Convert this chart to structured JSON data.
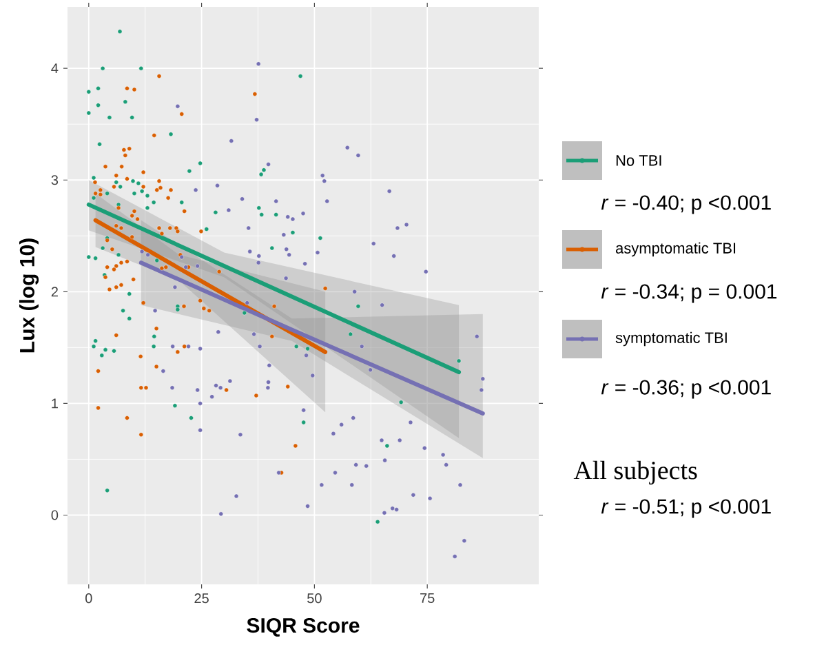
{
  "chart_data": {
    "type": "scatter",
    "xlabel": "SIQR Score",
    "ylabel": "Lux (log 10)",
    "xlim": [
      -4.7,
      99.7
    ],
    "ylim": [
      -0.62,
      4.55
    ],
    "xticks": [
      0,
      25,
      50,
      75
    ],
    "yticks": [
      0,
      1,
      2,
      3,
      4
    ],
    "grid": true,
    "legend": "right",
    "marker": "circle",
    "line_style": "solid",
    "series": [
      {
        "name": "No TBI",
        "color": "#1b9e77",
        "x": [
          6.9,
          3.1,
          11.6,
          0,
          2.1,
          2.1,
          0,
          4.6,
          9.6,
          8.1,
          18.2,
          2.4,
          24.7,
          22.3,
          1.1,
          6.1,
          7.0,
          9.8,
          11.0,
          10.1,
          11.8,
          13.0,
          14.4,
          13.0,
          20.6,
          28.1,
          26.1,
          1.1,
          4.1,
          6.6,
          0,
          1.5,
          6.6,
          4.1,
          3.1,
          3.5,
          9.0,
          15.1,
          7.6,
          9.0,
          1.5,
          1.1,
          3.7,
          5.6,
          2.9,
          14.5,
          14.4,
          4.1,
          19.1,
          22.7,
          19.7,
          19.7,
          46.9,
          38.8,
          38.2,
          37.7,
          38.3,
          41.5,
          45.2,
          51.3,
          40.6,
          47.6,
          34.5,
          58.0,
          59.7,
          46.0,
          48.5,
          64.0,
          82.0,
          69.2,
          66.1
        ],
        "values": [
          4.33,
          4.0,
          4.0,
          3.79,
          3.82,
          3.67,
          3.6,
          3.56,
          3.56,
          3.7,
          3.41,
          3.32,
          3.15,
          3.08,
          3.02,
          2.98,
          2.94,
          2.99,
          2.97,
          2.88,
          2.9,
          2.86,
          2.8,
          2.75,
          2.8,
          2.71,
          2.56,
          2.84,
          2.88,
          2.78,
          2.31,
          2.3,
          2.33,
          2.48,
          2.39,
          2.15,
          1.98,
          2.28,
          1.83,
          1.76,
          1.56,
          1.51,
          1.48,
          1.47,
          1.43,
          1.6,
          1.51,
          0.22,
          0.98,
          0.87,
          1.87,
          1.84,
          3.93,
          3.09,
          3.05,
          2.75,
          2.69,
          2.69,
          2.53,
          2.48,
          2.39,
          0.83,
          1.81,
          1.62,
          1.87,
          1.51,
          1.49,
          -0.06,
          1.38,
          1.01,
          0.62
        ]
      },
      {
        "name": "asymptomatic TBI",
        "color": "#d95f02",
        "x": [
          15.6,
          8.5,
          10.1,
          20.6,
          14.5,
          7.8,
          9.0,
          8.1,
          3.7,
          7.3,
          6.1,
          12.1,
          8.5,
          15.6,
          5.6,
          12.1,
          15.1,
          15.9,
          18.2,
          17.6,
          21.2,
          1.4,
          1.5,
          2.6,
          2.6,
          6.6,
          10.1,
          9.6,
          10.8,
          6.1,
          7.2,
          15.6,
          18.0,
          19.4,
          19.7,
          24.9,
          16.2,
          4.1,
          5.2,
          9.6,
          20.3,
          22.1,
          28.9,
          16.2,
          17.1,
          4.1,
          6.1,
          5.6,
          7.2,
          8.5,
          3.7,
          9.9,
          4.6,
          6.1,
          7.2,
          12.1,
          21.1,
          24.7,
          25.5,
          26.7,
          15.0,
          6.1,
          11.5,
          15.0,
          2.1,
          19.7,
          21.2,
          11.6,
          12.7,
          2.1,
          8.5,
          11.6,
          30.5,
          37.1,
          44.1,
          45.8,
          42.7,
          52.4,
          40.6,
          41.1,
          36.8
        ],
        "values": [
          3.93,
          3.82,
          3.81,
          3.59,
          3.4,
          3.27,
          3.28,
          3.22,
          3.12,
          3.12,
          3.04,
          3.07,
          3.01,
          2.99,
          2.94,
          2.94,
          2.91,
          2.93,
          2.91,
          2.84,
          2.72,
          2.98,
          2.88,
          2.91,
          2.87,
          2.75,
          2.72,
          2.68,
          2.65,
          2.59,
          2.57,
          2.57,
          2.57,
          2.57,
          2.54,
          2.54,
          2.52,
          2.46,
          2.38,
          2.49,
          2.33,
          2.22,
          2.18,
          2.21,
          2.22,
          2.22,
          2.23,
          2.2,
          2.26,
          2.27,
          2.13,
          2.11,
          2.02,
          2.04,
          2.06,
          1.9,
          1.87,
          1.92,
          1.85,
          1.83,
          1.67,
          1.61,
          1.42,
          1.33,
          1.29,
          1.46,
          1.51,
          1.14,
          1.14,
          0.96,
          0.87,
          0.72,
          1.12,
          1.07,
          1.15,
          0.62,
          0.38,
          2.03,
          1.6,
          1.87,
          3.77
        ]
      },
      {
        "name": "symptomatic TBI",
        "color": "#7570b3",
        "x": [
          19.7,
          23.7,
          28.5,
          11.8,
          13.1,
          20.6,
          21.5,
          24.1,
          19.1,
          37.6,
          37.2,
          31.6,
          57.3,
          59.7,
          39.8,
          51.8,
          52.2,
          34.0,
          41.5,
          52.8,
          31.0,
          47.5,
          44.1,
          45.2,
          35.4,
          43.2,
          63.1,
          43.8,
          35.7,
          44.4,
          50.7,
          37.7,
          37.6,
          47.9,
          43.7,
          58.9,
          66.6,
          68.4,
          70.4,
          67.6,
          74.7,
          14.7,
          28.7,
          18.6,
          22.1,
          24.7,
          16.5,
          18.5,
          24.1,
          28.2,
          29.2,
          27.3,
          24.7,
          24.7,
          29.3,
          31.3,
          39.8,
          39.7,
          40.0,
          49.6,
          47.6,
          58.6,
          56.0,
          54.2,
          33.6,
          42.1,
          51.6,
          54.6,
          59.2,
          61.5,
          58.3,
          32.7,
          48.5,
          60.5,
          62.4,
          48.2,
          37.9,
          36.6,
          35.1,
          65.0,
          86.0,
          87.3,
          87.0,
          71.3,
          64.9,
          68.9,
          65.6,
          74.4,
          78.5,
          79.2,
          82.3,
          71.9,
          75.6,
          65.5,
          67.3,
          68.2,
          83.2,
          81.1
        ],
        "values": [
          3.66,
          2.91,
          2.95,
          2.36,
          2.33,
          2.31,
          2.22,
          2.23,
          2.04,
          4.04,
          3.54,
          3.35,
          3.29,
          3.22,
          3.14,
          3.04,
          2.99,
          2.83,
          2.81,
          2.81,
          2.73,
          2.7,
          2.67,
          2.65,
          2.57,
          2.51,
          2.43,
          2.38,
          2.36,
          2.33,
          2.35,
          2.32,
          2.26,
          2.25,
          2.12,
          2.0,
          2.9,
          2.57,
          2.6,
          2.32,
          2.18,
          1.83,
          1.64,
          1.51,
          1.51,
          1.49,
          1.29,
          1.14,
          1.12,
          1.16,
          1.14,
          1.06,
          1.0,
          0.76,
          0.01,
          1.2,
          1.19,
          1.14,
          1.34,
          1.25,
          0.94,
          0.87,
          0.81,
          0.73,
          0.72,
          0.38,
          0.27,
          0.38,
          0.45,
          0.44,
          0.27,
          0.17,
          0.08,
          1.51,
          1.3,
          1.43,
          1.51,
          1.62,
          1.9,
          1.88,
          1.6,
          1.22,
          1.12,
          0.83,
          0.67,
          0.67,
          0.49,
          0.6,
          0.54,
          0.45,
          0.27,
          0.18,
          0.15,
          0.02,
          0.06,
          0.05,
          -0.23,
          -0.37
        ]
      },
      {
        "type": "line",
        "marker": "none",
        "color": "#1b9e77",
        "x": [
          0,
          30,
          82
        ],
        "values": [
          2.78,
          2.23,
          1.28
        ],
        "lower": [
          2.55,
          2.13,
          0.69
        ],
        "upper": [
          3.0,
          2.35,
          1.88
        ]
      },
      {
        "type": "line",
        "marker": "none",
        "color": "#d95f02",
        "x": [
          1.5,
          20,
          52.4
        ],
        "values": [
          2.64,
          2.21,
          1.46
        ],
        "lower": [
          2.4,
          2.1,
          0.92
        ],
        "upper": [
          2.88,
          2.33,
          2.0
        ]
      },
      {
        "type": "line",
        "marker": "none",
        "color": "#7570b3",
        "x": [
          11.6,
          45,
          87.3
        ],
        "values": [
          2.26,
          1.66,
          0.91
        ],
        "lower": [
          1.88,
          1.56,
          0.51
        ],
        "upper": [
          2.64,
          1.76,
          1.8
        ]
      }
    ],
    "annotations": [
      "*r* = -0.40; p <0.001",
      "*r* = -0.34; p = 0.001",
      "*r* = -0.36; p <0.001",
      "All subjects",
      "*r* = -0.51; p <0.001"
    ]
  }
}
